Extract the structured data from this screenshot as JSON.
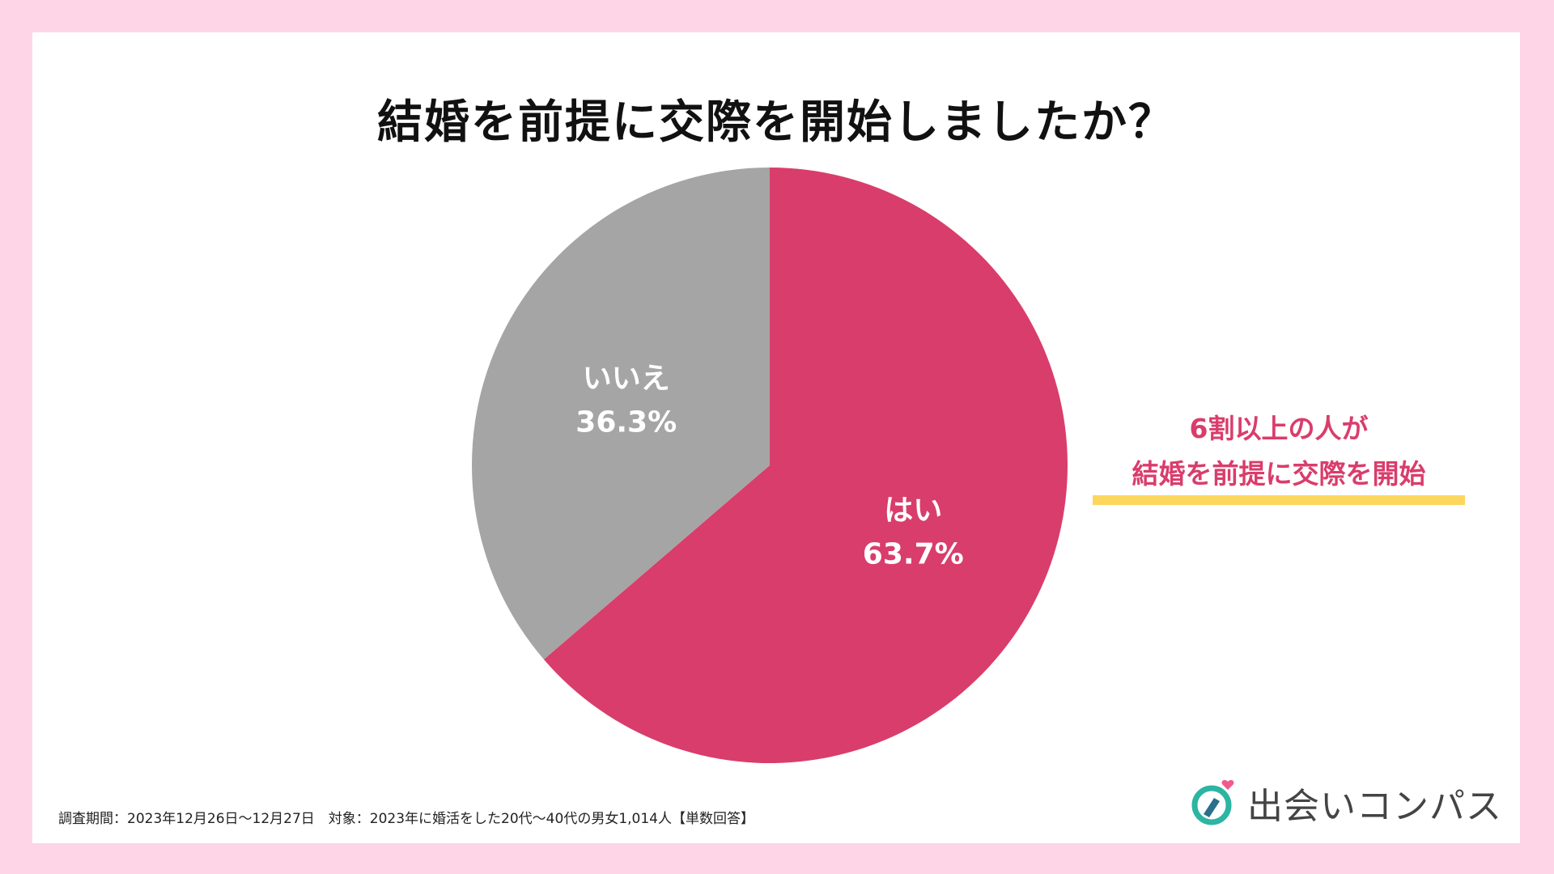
{
  "title": "結婚を前提に交際を開始しましたか？",
  "chart_data": {
    "type": "pie",
    "title": "結婚を前提に交際を開始しましたか？",
    "slices": [
      {
        "label": "はい",
        "value": 63.7,
        "value_label": "63.7%",
        "color": "#d93d6b"
      },
      {
        "label": "いいえ",
        "value": 36.3,
        "value_label": "36.3%",
        "color": "#a5a5a5"
      }
    ],
    "start": "12 o'clock",
    "direction": "clockwise"
  },
  "callout": {
    "line1": "6割以上の人が",
    "line2": "結婚を前提に交際を開始",
    "text_color": "#d93d6b",
    "underline_color": "#fdd65e"
  },
  "footnote": "調査期間：2023年12月26日〜12月27日　対象：2023年に婚活をした20代〜40代の男女1,014人【単数回答】",
  "brand": {
    "name": "出会いコンパス",
    "icon": "compass-heart-icon",
    "colors": {
      "ring": "#2cb5a3",
      "heart": "#f05a8c",
      "needle": "#2b6f8a"
    }
  },
  "colors": {
    "frame": "#fdd5e7",
    "panel": "#ffffff"
  }
}
